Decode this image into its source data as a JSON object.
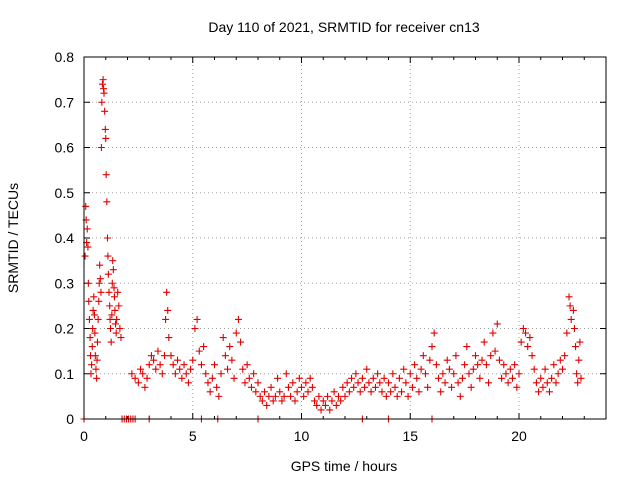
{
  "chart_data": {
    "type": "scatter",
    "title": "Day 110 of 2021, SRMTID for receiver cn13",
    "xlabel": "GPS time / hours",
    "ylabel": "SRMTID / TECUs",
    "xlim": [
      0,
      24
    ],
    "ylim": [
      0,
      0.8
    ],
    "xticks": [
      0,
      5,
      10,
      15,
      20
    ],
    "yticks": [
      0,
      0.1,
      0.2,
      0.3,
      0.4,
      0.5,
      0.6,
      0.7,
      0.8
    ],
    "xtick_labels": [
      "0",
      "5",
      "10",
      "15",
      "20"
    ],
    "ytick_labels": [
      "0",
      "0.1",
      "0.2",
      "0.3",
      "0.4",
      "0.5",
      "0.6",
      "0.7",
      "0.8"
    ],
    "grid": true,
    "marker": "+",
    "color": "#e00000",
    "series": [
      {
        "name": "cn13",
        "points": [
          [
            0.0,
            0.0
          ],
          [
            0.05,
            0.36
          ],
          [
            0.08,
            0.47
          ],
          [
            0.1,
            0.44
          ],
          [
            0.12,
            0.39
          ],
          [
            0.15,
            0.42
          ],
          [
            0.18,
            0.38
          ],
          [
            0.2,
            0.3
          ],
          [
            0.22,
            0.26
          ],
          [
            0.25,
            0.22
          ],
          [
            0.28,
            0.18
          ],
          [
            0.3,
            0.14
          ],
          [
            0.32,
            0.1
          ],
          [
            0.35,
            0.12
          ],
          [
            0.38,
            0.16
          ],
          [
            0.4,
            0.2
          ],
          [
            0.42,
            0.24
          ],
          [
            0.45,
            0.27
          ],
          [
            0.48,
            0.23
          ],
          [
            0.5,
            0.19
          ],
          [
            0.52,
            0.14
          ],
          [
            0.55,
            0.11
          ],
          [
            0.58,
            0.09
          ],
          [
            0.6,
            0.13
          ],
          [
            0.62,
            0.17
          ],
          [
            0.65,
            0.22
          ],
          [
            0.68,
            0.26
          ],
          [
            0.7,
            0.3
          ],
          [
            0.72,
            0.34
          ],
          [
            0.75,
            0.31
          ],
          [
            0.78,
            0.28
          ],
          [
            0.8,
            0.6
          ],
          [
            0.82,
            0.7
          ],
          [
            0.85,
            0.74
          ],
          [
            0.88,
            0.75
          ],
          [
            0.9,
            0.73
          ],
          [
            0.92,
            0.72
          ],
          [
            0.95,
            0.68
          ],
          [
            0.98,
            0.64
          ],
          [
            1.0,
            0.62
          ],
          [
            1.02,
            0.54
          ],
          [
            1.05,
            0.48
          ],
          [
            1.08,
            0.4
          ],
          [
            1.1,
            0.36
          ],
          [
            1.12,
            0.32
          ],
          [
            1.15,
            0.28
          ],
          [
            1.18,
            0.25
          ],
          [
            1.2,
            0.22
          ],
          [
            1.22,
            0.2
          ],
          [
            1.25,
            0.17
          ],
          [
            1.28,
            0.23
          ],
          [
            1.3,
            0.3
          ],
          [
            1.32,
            0.35
          ],
          [
            1.35,
            0.33
          ],
          [
            1.38,
            0.29
          ],
          [
            1.4,
            0.27
          ],
          [
            1.42,
            0.24
          ],
          [
            1.45,
            0.21
          ],
          [
            1.48,
            0.19
          ],
          [
            1.5,
            0.22
          ],
          [
            1.55,
            0.28
          ],
          [
            1.6,
            0.25
          ],
          [
            1.65,
            0.2
          ],
          [
            1.7,
            0.18
          ],
          [
            1.75,
            0.0
          ],
          [
            1.85,
            0.0
          ],
          [
            1.95,
            0.0
          ],
          [
            2.05,
            0.0
          ],
          [
            2.15,
            0.0
          ],
          [
            2.25,
            0.0
          ],
          [
            2.35,
            0.0
          ],
          [
            2.2,
            0.1
          ],
          [
            2.35,
            0.09
          ],
          [
            2.5,
            0.08
          ],
          [
            2.6,
            0.11
          ],
          [
            2.7,
            0.1
          ],
          [
            2.8,
            0.07
          ],
          [
            2.9,
            0.09
          ],
          [
            3.0,
            0.0
          ],
          [
            3.0,
            0.12
          ],
          [
            3.1,
            0.14
          ],
          [
            3.2,
            0.13
          ],
          [
            3.3,
            0.11
          ],
          [
            3.4,
            0.15
          ],
          [
            3.5,
            0.12
          ],
          [
            3.6,
            0.1
          ],
          [
            3.7,
            0.14
          ],
          [
            3.75,
            0.22
          ],
          [
            3.8,
            0.28
          ],
          [
            3.85,
            0.24
          ],
          [
            3.9,
            0.18
          ],
          [
            4.0,
            0.14
          ],
          [
            4.1,
            0.12
          ],
          [
            4.2,
            0.1
          ],
          [
            4.3,
            0.13
          ],
          [
            4.4,
            0.11
          ],
          [
            4.5,
            0.09
          ],
          [
            4.6,
            0.12
          ],
          [
            4.7,
            0.1
          ],
          [
            4.8,
            0.08
          ],
          [
            4.9,
            0.11
          ],
          [
            5.0,
            0.13
          ],
          [
            5.1,
            0.2
          ],
          [
            5.2,
            0.22
          ],
          [
            5.3,
            0.15
          ],
          [
            5.4,
            0.0
          ],
          [
            5.4,
            0.12
          ],
          [
            5.5,
            0.16
          ],
          [
            5.6,
            0.1
          ],
          [
            5.7,
            0.08
          ],
          [
            5.8,
            0.06
          ],
          [
            5.9,
            0.09
          ],
          [
            6.0,
            0.12
          ],
          [
            6.1,
            0.07
          ],
          [
            6.15,
            0.0
          ],
          [
            6.2,
            0.05
          ],
          [
            6.3,
            0.1
          ],
          [
            6.4,
            0.18
          ],
          [
            6.5,
            0.14
          ],
          [
            6.6,
            0.11
          ],
          [
            6.7,
            0.16
          ],
          [
            6.8,
            0.13
          ],
          [
            6.9,
            0.09
          ],
          [
            7.0,
            0.19
          ],
          [
            7.1,
            0.22
          ],
          [
            7.2,
            0.17
          ],
          [
            7.3,
            0.11
          ],
          [
            7.4,
            0.08
          ],
          [
            7.5,
            0.12
          ],
          [
            7.6,
            0.09
          ],
          [
            7.7,
            0.07
          ],
          [
            7.8,
            0.1
          ],
          [
            7.9,
            0.06
          ],
          [
            8.0,
            0.0
          ],
          [
            8.0,
            0.08
          ],
          [
            8.1,
            0.05
          ],
          [
            8.2,
            0.04
          ],
          [
            8.3,
            0.06
          ],
          [
            8.4,
            0.03
          ],
          [
            8.5,
            0.05
          ],
          [
            8.6,
            0.07
          ],
          [
            8.7,
            0.04
          ],
          [
            8.8,
            0.05
          ],
          [
            8.9,
            0.09
          ],
          [
            9.0,
            0.06
          ],
          [
            9.1,
            0.04
          ],
          [
            9.2,
            0.05
          ],
          [
            9.3,
            0.1
          ],
          [
            9.4,
            0.07
          ],
          [
            9.5,
            0.05
          ],
          [
            9.6,
            0.08
          ],
          [
            9.7,
            0.04
          ],
          [
            9.8,
            0.06
          ],
          [
            9.9,
            0.09
          ],
          [
            10.0,
            0.07
          ],
          [
            10.1,
            0.05
          ],
          [
            10.2,
            0.08
          ],
          [
            10.3,
            0.06
          ],
          [
            10.4,
            0.09
          ],
          [
            10.5,
            0.07
          ],
          [
            10.6,
            0.04
          ],
          [
            10.7,
            0.03
          ],
          [
            10.8,
            0.05
          ],
          [
            10.9,
            0.02
          ],
          [
            11.0,
            0.04
          ],
          [
            11.1,
            0.03
          ],
          [
            11.2,
            0.05
          ],
          [
            11.3,
            0.02
          ],
          [
            11.4,
            0.04
          ],
          [
            11.5,
            0.06
          ],
          [
            11.6,
            0.03
          ],
          [
            11.7,
            0.05
          ],
          [
            11.8,
            0.04
          ],
          [
            11.9,
            0.07
          ],
          [
            12.0,
            0.05
          ],
          [
            12.1,
            0.08
          ],
          [
            12.2,
            0.06
          ],
          [
            12.3,
            0.09
          ],
          [
            12.4,
            0.07
          ],
          [
            12.5,
            0.1
          ],
          [
            12.6,
            0.08
          ],
          [
            12.7,
            0.06
          ],
          [
            12.8,
            0.0
          ],
          [
            12.8,
            0.09
          ],
          [
            12.9,
            0.07
          ],
          [
            13.0,
            0.11
          ],
          [
            13.1,
            0.08
          ],
          [
            13.2,
            0.06
          ],
          [
            13.3,
            0.09
          ],
          [
            13.4,
            0.07
          ],
          [
            13.5,
            0.1
          ],
          [
            13.6,
            0.08
          ],
          [
            13.7,
            0.06
          ],
          [
            13.8,
            0.09
          ],
          [
            13.9,
            0.05
          ],
          [
            14.0,
            0.0
          ],
          [
            14.0,
            0.08
          ],
          [
            14.1,
            0.06
          ],
          [
            14.2,
            0.1
          ],
          [
            14.3,
            0.07
          ],
          [
            14.4,
            0.05
          ],
          [
            14.5,
            0.09
          ],
          [
            14.6,
            0.06
          ],
          [
            14.7,
            0.11
          ],
          [
            14.8,
            0.08
          ],
          [
            14.9,
            0.05
          ],
          [
            15.0,
            0.1
          ],
          [
            15.1,
            0.07
          ],
          [
            15.2,
            0.12
          ],
          [
            15.3,
            0.09
          ],
          [
            15.4,
            0.06
          ],
          [
            15.5,
            0.11
          ],
          [
            15.6,
            0.14
          ],
          [
            15.7,
            0.1
          ],
          [
            15.8,
            0.07
          ],
          [
            15.9,
            0.13
          ],
          [
            16.0,
            0.0
          ],
          [
            16.0,
            0.16
          ],
          [
            16.1,
            0.19
          ],
          [
            16.2,
            0.12
          ],
          [
            16.3,
            0.09
          ],
          [
            16.4,
            0.06
          ],
          [
            16.5,
            0.1
          ],
          [
            16.6,
            0.08
          ],
          [
            16.7,
            0.13
          ],
          [
            16.8,
            0.11
          ],
          [
            16.9,
            0.07
          ],
          [
            17.0,
            0.1
          ],
          [
            17.1,
            0.14
          ],
          [
            17.2,
            0.08
          ],
          [
            17.3,
            0.05
          ],
          [
            17.4,
            0.09
          ],
          [
            17.5,
            0.12
          ],
          [
            17.6,
            0.16
          ],
          [
            17.7,
            0.1
          ],
          [
            17.8,
            0.07
          ],
          [
            17.9,
            0.11
          ],
          [
            18.0,
            0.14
          ],
          [
            18.1,
            0.12
          ],
          [
            18.2,
            0.09
          ],
          [
            18.3,
            0.13
          ],
          [
            18.4,
            0.17
          ],
          [
            18.5,
            0.12
          ],
          [
            18.6,
            0.08
          ],
          [
            18.7,
            0.14
          ],
          [
            18.8,
            0.19
          ],
          [
            18.9,
            0.15
          ],
          [
            19.0,
            0.21
          ],
          [
            19.1,
            0.13
          ],
          [
            19.2,
            0.09
          ],
          [
            19.3,
            0.12
          ],
          [
            19.4,
            0.1
          ],
          [
            19.5,
            0.08
          ],
          [
            19.6,
            0.11
          ],
          [
            19.7,
            0.09
          ],
          [
            19.8,
            0.12
          ],
          [
            19.9,
            0.07
          ],
          [
            20.0,
            0.1
          ],
          [
            20.1,
            0.17
          ],
          [
            20.2,
            0.2
          ],
          [
            20.3,
            0.19
          ],
          [
            20.4,
            0.16
          ],
          [
            20.5,
            0.18
          ],
          [
            20.6,
            0.14
          ],
          [
            20.7,
            0.11
          ],
          [
            20.8,
            0.08
          ],
          [
            20.9,
            0.06
          ],
          [
            21.0,
            0.09
          ],
          [
            21.1,
            0.07
          ],
          [
            21.2,
            0.11
          ],
          [
            21.3,
            0.08
          ],
          [
            21.4,
            0.06
          ],
          [
            21.5,
            0.09
          ],
          [
            21.6,
            0.12
          ],
          [
            21.7,
            0.08
          ],
          [
            21.8,
            0.1
          ],
          [
            21.9,
            0.13
          ],
          [
            22.0,
            0.11
          ],
          [
            22.1,
            0.14
          ],
          [
            22.2,
            0.19
          ],
          [
            22.3,
            0.27
          ],
          [
            22.35,
            0.25
          ],
          [
            22.4,
            0.22
          ],
          [
            22.5,
            0.24
          ],
          [
            22.55,
            0.2
          ],
          [
            22.6,
            0.16
          ],
          [
            22.65,
            0.1
          ],
          [
            22.7,
            0.08
          ],
          [
            22.75,
            0.13
          ],
          [
            22.8,
            0.17
          ],
          [
            22.85,
            0.09
          ]
        ]
      }
    ]
  }
}
